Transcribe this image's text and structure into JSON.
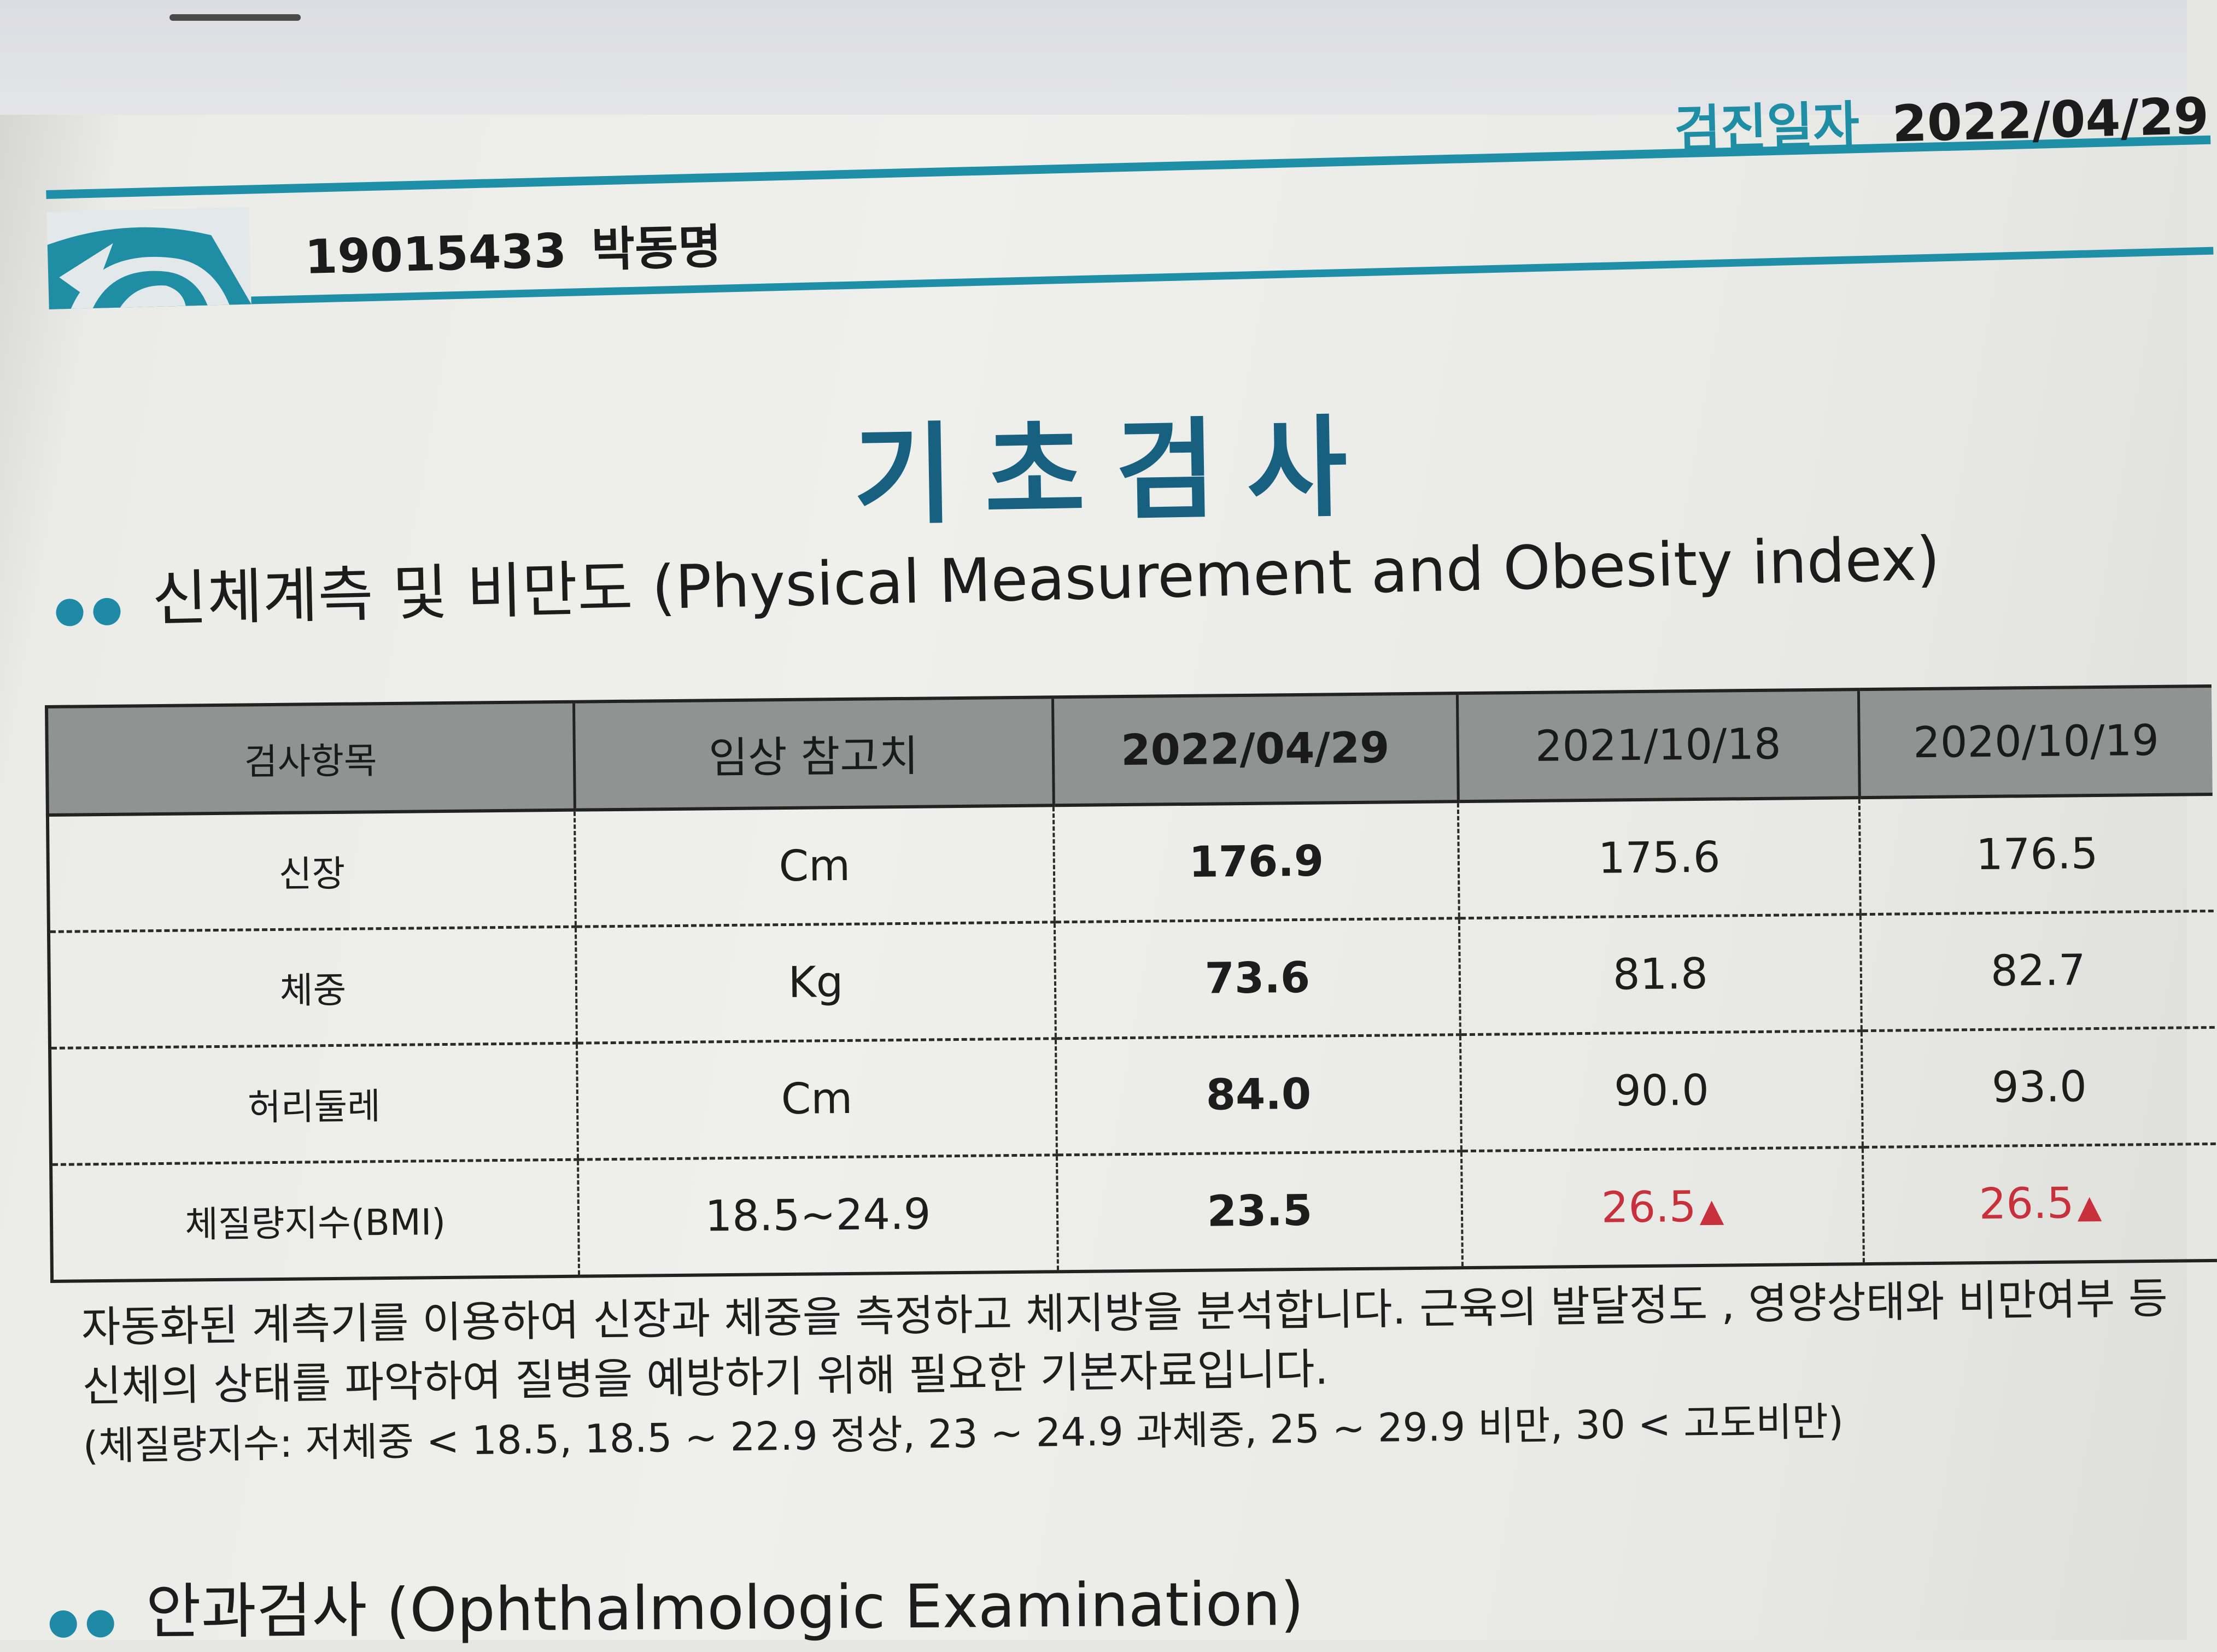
{
  "header": {
    "patient_id": "19015433",
    "patient_name": "박동명",
    "exam_date_label": "검진일자",
    "exam_date": "2022/04/29"
  },
  "title": "기초검사",
  "section": {
    "heading": "신체계측 및 비만도 (Physical Measurement and Obesity index)"
  },
  "table": {
    "headers": [
      "검사항목",
      "임상 참고치",
      "2022/04/29",
      "2021/10/18",
      "2020/10/19"
    ],
    "rows": [
      {
        "item": "신장",
        "ref": "Cm",
        "v1": "176.9",
        "v2": "175.6",
        "v3": "176.5"
      },
      {
        "item": "체중",
        "ref": "Kg",
        "v1": "73.6",
        "v2": "81.8",
        "v3": "82.7"
      },
      {
        "item": "허리둘레",
        "ref": "Cm",
        "v1": "84.0",
        "v2": "90.0",
        "v3": "93.0"
      },
      {
        "item": "체질량지수(BMI)",
        "ref": "18.5~24.9",
        "v1": "23.5",
        "v2": "26.5",
        "v3": "26.5"
      }
    ],
    "flag_symbol": "▲",
    "flag_color": "#c8303c"
  },
  "notes": [
    "자동화된 계측기를 이용하여 신장과 체중을 측정하고 체지방을 분석합니다. 근육의 발달정도 , 영양상태와 비만여부 등",
    "신체의 상태를 파악하여 질병을 예방하기 위해 필요한 기본자료입니다.",
    "(체질량지수: 저체중 < 18.5, 18.5 ~ 22.9 정상, 23 ~ 24.9 과체중, 25 ~ 29.9 비만, 30 < 고도비만)"
  ],
  "next_section": {
    "heading": "안과검사 (Ophthalmologic Examination)"
  },
  "colors": {
    "accent": "#1f8ea5",
    "title": "#17607f",
    "table_header_bg": "#8f9391"
  }
}
